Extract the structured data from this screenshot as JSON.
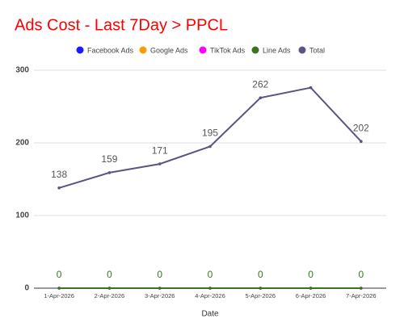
{
  "chart_data": {
    "type": "line",
    "title": "Ads Cost - Last 7Day > PPCL",
    "x_label": "Date",
    "categories": [
      "1-Apr-2026",
      "2-Apr-2026",
      "3-Apr-2026",
      "4-Apr-2026",
      "5-Apr-2026",
      "6-Apr-2026",
      "7-Apr-2026"
    ],
    "ylim": [
      0,
      300
    ],
    "yticks": [
      0,
      100,
      200,
      300
    ],
    "grid": true,
    "series": [
      {
        "name": "Facebook Ads",
        "color": "#1a1aff",
        "values": [
          0,
          0,
          0,
          0,
          0,
          0,
          0
        ]
      },
      {
        "name": "Google Ads",
        "color": "#ff9900",
        "values": [
          0,
          0,
          0,
          0,
          0,
          0,
          0
        ]
      },
      {
        "name": "TikTok Ads",
        "color": "#ff00ff",
        "values": [
          0,
          0,
          0,
          0,
          0,
          0,
          0
        ]
      },
      {
        "name": "Line Ads",
        "color": "#38761d",
        "values": [
          0,
          0,
          0,
          0,
          0,
          0,
          0
        ],
        "value_labels": [
          "0",
          "0",
          "0",
          "0",
          "0",
          "0",
          "0"
        ]
      },
      {
        "name": "Total",
        "color": "#5b5580",
        "label_color": "#555555",
        "values": [
          138,
          159,
          171,
          195,
          262,
          276,
          202
        ],
        "value_labels": [
          "138",
          "159",
          "171",
          "195",
          "262",
          null,
          "202"
        ]
      }
    ]
  }
}
